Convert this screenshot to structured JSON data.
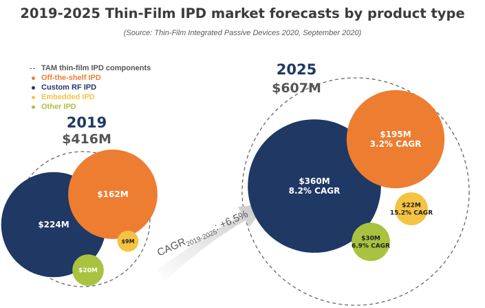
{
  "title": "2019-2025 Thin-Film IPD market forecasts by product type",
  "subtitle": "(Source: Thin-Film Integrated Passive Devices 2020, September 2020)",
  "legend": [
    {
      "label": "TAM thin-film IPD components",
      "marker": "dashed-line",
      "color": "#555555"
    },
    {
      "label": "Off-the-shelf IPD",
      "marker": "dot",
      "color": "#ed7d31"
    },
    {
      "label": "Custom RF IPD",
      "marker": "dot",
      "color": "#1f3864"
    },
    {
      "label": "Embedded IPD",
      "marker": "dot",
      "color": "#f5c342"
    },
    {
      "label": "Other IPD",
      "marker": "dot",
      "color": "#a9c23f"
    }
  ],
  "cagr_arrow": {
    "prefix": "CAGR",
    "sub": "2019-2025",
    "suffix": ": +6,5%"
  },
  "chart_data": {
    "type": "bubble",
    "title": "2019-2025 Thin-Film IPD market forecasts by product type",
    "categories": [
      "Off-the-shelf IPD",
      "Custom RF IPD",
      "Embedded IPD",
      "Other IPD"
    ],
    "groups": [
      {
        "year": "2019",
        "total_label": "$416M",
        "total": 416,
        "bubbles": [
          {
            "category": "Custom RF IPD",
            "value": 224,
            "label": "$224M",
            "cagr": "",
            "color": "#1f3864"
          },
          {
            "category": "Off-the-shelf IPD",
            "value": 162,
            "label": "$162M",
            "cagr": "",
            "color": "#ed7d31"
          },
          {
            "category": "Embedded IPD",
            "value": 9,
            "label": "$9M",
            "cagr": "",
            "color": "#f5c342"
          },
          {
            "category": "Other IPD",
            "value": 20,
            "label": "$20M",
            "cagr": "",
            "color": "#a9c23f"
          }
        ]
      },
      {
        "year": "2025",
        "total_label": "$607M",
        "total": 607,
        "bubbles": [
          {
            "category": "Custom RF IPD",
            "value": 360,
            "label": "$360M",
            "cagr": "8.2% CAGR",
            "color": "#1f3864"
          },
          {
            "category": "Off-the-shelf IPD",
            "value": 195,
            "label": "$195M",
            "cagr": "3.2% CAGR",
            "color": "#ed7d31"
          },
          {
            "category": "Embedded IPD",
            "value": 22,
            "label": "$22M",
            "cagr": "15.2% CAGR",
            "color": "#f5c342"
          },
          {
            "category": "Other IPD",
            "value": 30,
            "label": "$30M",
            "cagr": "6.9% CAGR",
            "color": "#a9c23f"
          }
        ]
      }
    ]
  }
}
